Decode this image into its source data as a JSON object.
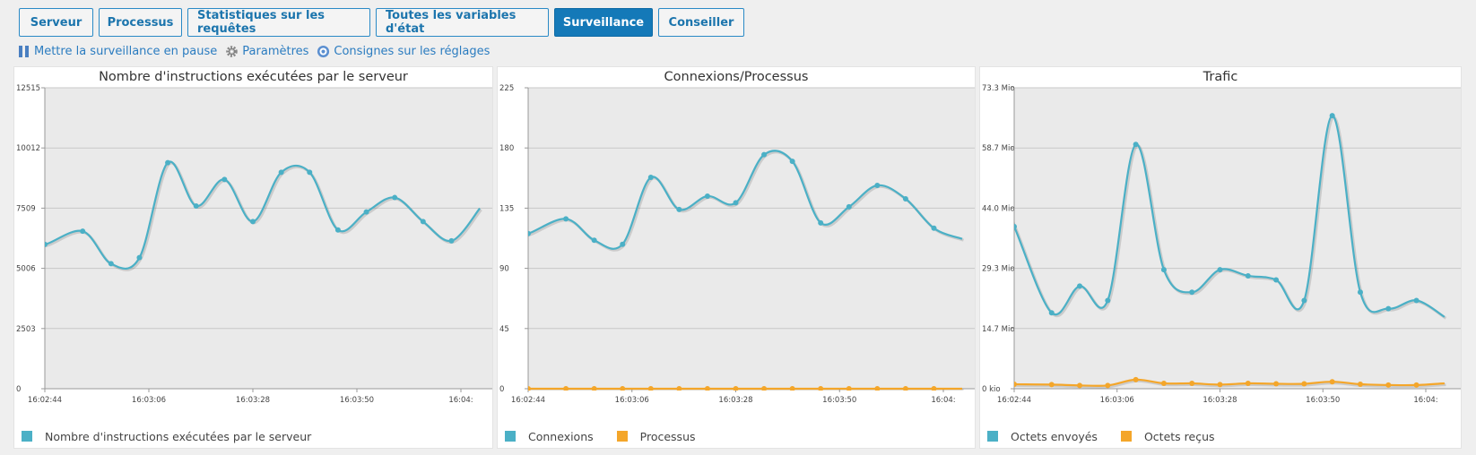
{
  "tabs": [
    {
      "label": "Serveur",
      "active": false
    },
    {
      "label": "Processus",
      "active": false
    },
    {
      "label": "Statistiques sur les requêtes",
      "active": false
    },
    {
      "label": "Toutes les variables d'état",
      "active": false
    },
    {
      "label": "Surveillance",
      "active": true
    },
    {
      "label": "Conseiller",
      "active": false
    }
  ],
  "toolbar": {
    "pause_label": "Mettre la surveillance en pause",
    "settings_label": "Paramètres",
    "instructions_label": "Consignes sur les réglages"
  },
  "colors": {
    "series_blue": "#4bb0c6",
    "series_orange": "#f4a62a",
    "link": "#2b7cc0",
    "active_tab": "#1479b8"
  },
  "chart_data": [
    {
      "type": "line",
      "title": "Nombre d'instructions exécutées par le serveur",
      "y_tick_labels": [
        "0",
        "2503",
        "5006",
        "7509",
        "10012",
        "12515"
      ],
      "x_tick_labels": [
        "16:02:44",
        "16:03:06",
        "16:03:28",
        "16:03:50",
        "16:04:"
      ],
      "ylim": [
        0,
        12515
      ],
      "grid": true,
      "legend_position": "bottom",
      "series": [
        {
          "name": "Nombre d'instructions exécutées par le serveur",
          "color": "#4bb0c6",
          "x": [
            -1,
            0,
            4,
            7,
            10,
            13,
            16,
            19,
            22,
            25,
            28,
            31,
            34,
            37,
            40,
            43,
            46
          ],
          "values": [
            6300,
            6000,
            6550,
            5200,
            5450,
            9400,
            7600,
            8700,
            6950,
            9000,
            9000,
            6600,
            7350,
            7950,
            6950,
            6150,
            7500
          ]
        }
      ]
    },
    {
      "type": "line",
      "title": "Connexions/Processus",
      "y_tick_labels": [
        "0",
        "45",
        "90",
        "135",
        "180",
        "225"
      ],
      "x_tick_labels": [
        "16:02:44",
        "16:03:06",
        "16:03:28",
        "16:03:50",
        "16:04:"
      ],
      "ylim": [
        0,
        225
      ],
      "grid": true,
      "legend_position": "bottom",
      "series": [
        {
          "name": "Connexions",
          "color": "#4bb0c6",
          "x": [
            -1,
            0,
            4,
            7,
            10,
            13,
            16,
            19,
            22,
            25,
            28,
            31,
            34,
            37,
            40,
            43,
            46
          ],
          "values": [
            118,
            116,
            127,
            111,
            108,
            158,
            134,
            144,
            139,
            175,
            170,
            124,
            136,
            152,
            142,
            120,
            112
          ]
        },
        {
          "name": "Processus",
          "color": "#f4a62a",
          "x": [
            -1,
            0,
            4,
            7,
            10,
            13,
            16,
            19,
            22,
            25,
            28,
            31,
            34,
            37,
            40,
            43,
            46
          ],
          "values": [
            0,
            0,
            0,
            0,
            0,
            0,
            0,
            0,
            0,
            0,
            0,
            0,
            0,
            0,
            0,
            0,
            0
          ]
        }
      ]
    },
    {
      "type": "line",
      "title": "Trafic",
      "y_tick_labels": [
        "0 kio",
        "14.7 Mio",
        "29.3 Mio",
        "44.0 Mio",
        "58.7 Mio",
        "73.3 Mio"
      ],
      "x_tick_labels": [
        "16:02:44",
        "16:03:06",
        "16:03:28",
        "16:03:50",
        "16:04:"
      ],
      "ylim": [
        0,
        73.3
      ],
      "grid": true,
      "legend_position": "bottom",
      "series": [
        {
          "name": "Octets envoyés",
          "color": "#4bb0c6",
          "x": [
            -1,
            0,
            4,
            7,
            10,
            13,
            16,
            19,
            22,
            25,
            28,
            31,
            34,
            37,
            40,
            43,
            46
          ],
          "values": [
            44.0,
            39.5,
            18.5,
            25,
            21.5,
            59.5,
            29,
            23.5,
            29,
            27.5,
            26.5,
            21.5,
            66.5,
            23.5,
            19.5,
            21.5,
            17.5
          ]
        },
        {
          "name": "Octets reçus",
          "color": "#f4a62a",
          "x": [
            -1,
            0,
            4,
            7,
            10,
            13,
            16,
            19,
            22,
            25,
            28,
            31,
            34,
            37,
            40,
            43,
            46
          ],
          "values": [
            1.3,
            1.1,
            1.0,
            0.8,
            0.8,
            2.2,
            1.3,
            1.3,
            1.0,
            1.3,
            1.2,
            1.2,
            1.7,
            1.1,
            0.9,
            0.9,
            1.3
          ]
        }
      ]
    }
  ]
}
